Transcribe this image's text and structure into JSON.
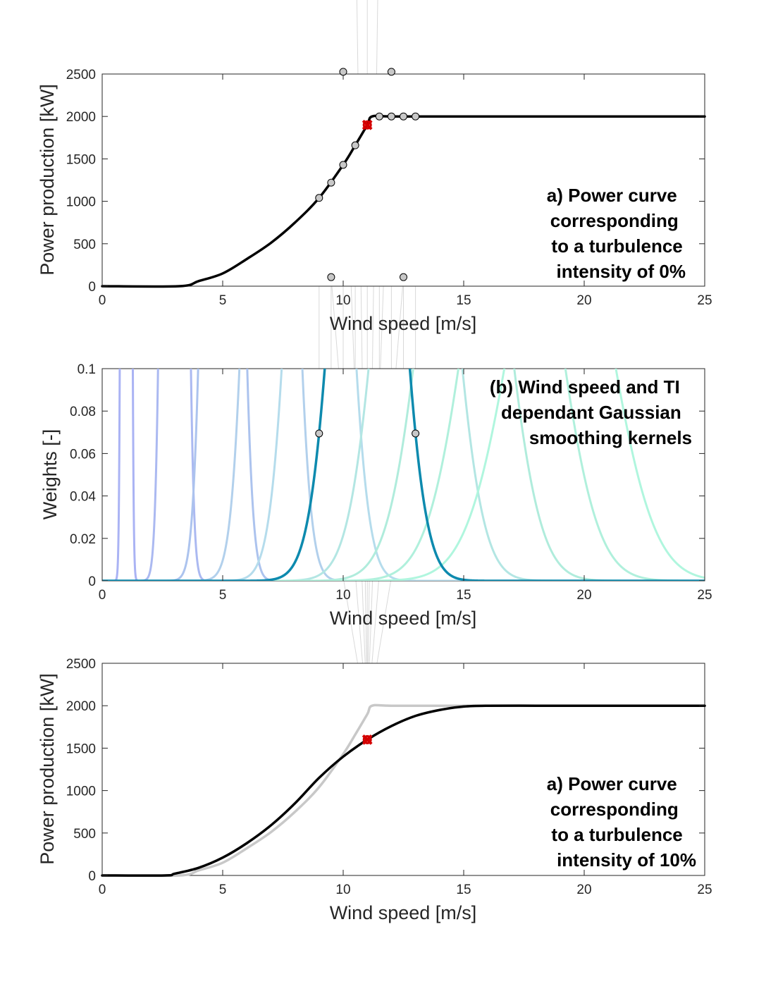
{
  "chart_data": [
    {
      "type": "line",
      "panel": "top",
      "xlabel": "Wind speed [m/s]",
      "ylabel": "Power production [kW]",
      "xlim": [
        0,
        25
      ],
      "ylim": [
        0,
        2500
      ],
      "xticks": [
        "0",
        "5",
        "10",
        "15",
        "20",
        "25"
      ],
      "yticks": [
        "0",
        "500",
        "1000",
        "1500",
        "2000",
        "2500"
      ],
      "grid": false,
      "annotation": [
        "a) Power curve",
        "corresponding",
        "to a turbulence",
        "intensity of 0%"
      ],
      "series": [
        {
          "color": "#000000",
          "x": [
            0,
            3.2,
            4,
            5,
            6,
            7,
            8,
            9,
            10,
            10.5,
            11,
            11.2,
            12,
            15,
            20,
            25
          ],
          "y": [
            0,
            0,
            60,
            150,
            320,
            510,
            750,
            1040,
            1430,
            1660,
            1900,
            2000,
            2000,
            2000,
            2000,
            2000
          ]
        }
      ],
      "markers": {
        "x": [
          9,
          9.5,
          10,
          10.5,
          11.5,
          12,
          12.5,
          13
        ],
        "y": [
          1040,
          1220,
          1430,
          1660,
          2000,
          2000,
          2000,
          2000
        ],
        "color": "#c8c8c8"
      },
      "highlight": {
        "x": 11,
        "y": 1900,
        "color": "#d40000"
      }
    },
    {
      "type": "line",
      "panel": "middle",
      "xlabel": "Wind speed [m/s]",
      "ylabel": "Weights [-]",
      "xlim": [
        0,
        25
      ],
      "ylim": [
        0,
        0.1
      ],
      "xticks": [
        "0",
        "5",
        "10",
        "15",
        "20",
        "25"
      ],
      "yticks": [
        "0",
        "0.02",
        "0.04",
        "0.06",
        "0.08",
        "0.1"
      ],
      "grid": false,
      "annotation": [
        "(b) Wind speed and TI",
        "dependant Gaussian",
        "smoothing  kernels"
      ],
      "kernels": {
        "ti": 0.1,
        "means": [
          1,
          3,
          5,
          7,
          9,
          11,
          13,
          15,
          17,
          19
        ],
        "colors": [
          "#aab3f4",
          "#abb9f1",
          "#acc3ee",
          "#b2d0ec",
          "#b5dcec",
          "#0d8aae",
          "#b3e6e3",
          "#b0ecdc",
          "#b0f0dc",
          "#b0f6de"
        ],
        "highlight_index": 5
      },
      "markers": {
        "x": [
          9,
          9.5,
          10,
          10.5,
          11,
          11.5,
          12,
          12.5,
          13
        ],
        "color": "#c8c8c8"
      }
    },
    {
      "type": "line",
      "panel": "bottom",
      "xlabel": "Wind speed [m/s]",
      "ylabel": "Power production [kW]",
      "xlim": [
        0,
        25
      ],
      "ylim": [
        0,
        2500
      ],
      "xticks": [
        "0",
        "5",
        "10",
        "15",
        "20",
        "25"
      ],
      "yticks": [
        "0",
        "500",
        "1000",
        "1500",
        "2000",
        "2500"
      ],
      "grid": false,
      "annotation": [
        "a) Power curve",
        "corresponding",
        "to a turbulence",
        "intensity of 10%"
      ],
      "series": [
        {
          "color": "#c8c8c8",
          "x": [
            0,
            3.2,
            4,
            5,
            6,
            7,
            8,
            9,
            10,
            10.5,
            11,
            11.2,
            12,
            15,
            20,
            25
          ],
          "y": [
            0,
            0,
            60,
            150,
            320,
            510,
            750,
            1040,
            1430,
            1660,
            1900,
            2000,
            2000,
            2000,
            2000,
            2000
          ]
        },
        {
          "color": "#000000",
          "x": [
            0,
            2.6,
            3,
            4,
            5,
            6,
            7,
            8,
            9,
            10,
            11,
            12,
            13,
            14,
            15,
            16,
            18,
            20,
            25
          ],
          "y": [
            0,
            0,
            20,
            90,
            210,
            380,
            590,
            850,
            1150,
            1400,
            1600,
            1760,
            1880,
            1950,
            1990,
            2000,
            2000,
            2000,
            2000
          ]
        }
      ],
      "highlight": {
        "x": 11,
        "y": 1600,
        "color": "#d40000"
      }
    }
  ]
}
